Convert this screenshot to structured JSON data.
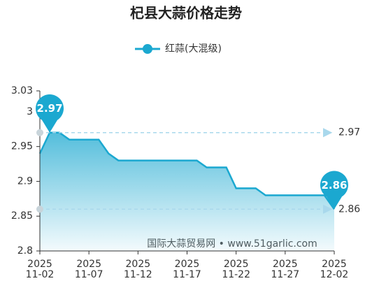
{
  "chart_data": {
    "type": "line",
    "title": "杞县大蒜价格走势",
    "categories": [
      "2025\n11-02",
      null,
      null,
      null,
      null,
      "2025\n11-07",
      null,
      null,
      null,
      null,
      "2025\n11-12",
      null,
      null,
      null,
      null,
      "2025\n11-17",
      null,
      null,
      null,
      null,
      "2025\n11-22",
      null,
      null,
      null,
      null,
      "2025\n11-27",
      null,
      null,
      null,
      null,
      "2025\n12-02"
    ],
    "series": [
      {
        "name": "红蒜(大混级)",
        "color": "#1ba8d0",
        "values": [
          2.94,
          2.97,
          2.97,
          2.96,
          2.96,
          2.96,
          2.96,
          2.94,
          2.93,
          2.93,
          2.93,
          2.93,
          2.93,
          2.93,
          2.93,
          2.93,
          2.93,
          2.92,
          2.92,
          2.92,
          2.89,
          2.89,
          2.89,
          2.88,
          2.88,
          2.88,
          2.88,
          2.88,
          2.88,
          2.88,
          2.86
        ]
      }
    ],
    "ylim": [
      2.8,
      3.03
    ],
    "yticks": [
      2.8,
      2.85,
      2.9,
      2.95,
      3,
      3.03
    ],
    "max_line": 2.97,
    "min_line": 2.86,
    "watermark": "国际大蒜贸易网 • www.51garlic.com"
  }
}
